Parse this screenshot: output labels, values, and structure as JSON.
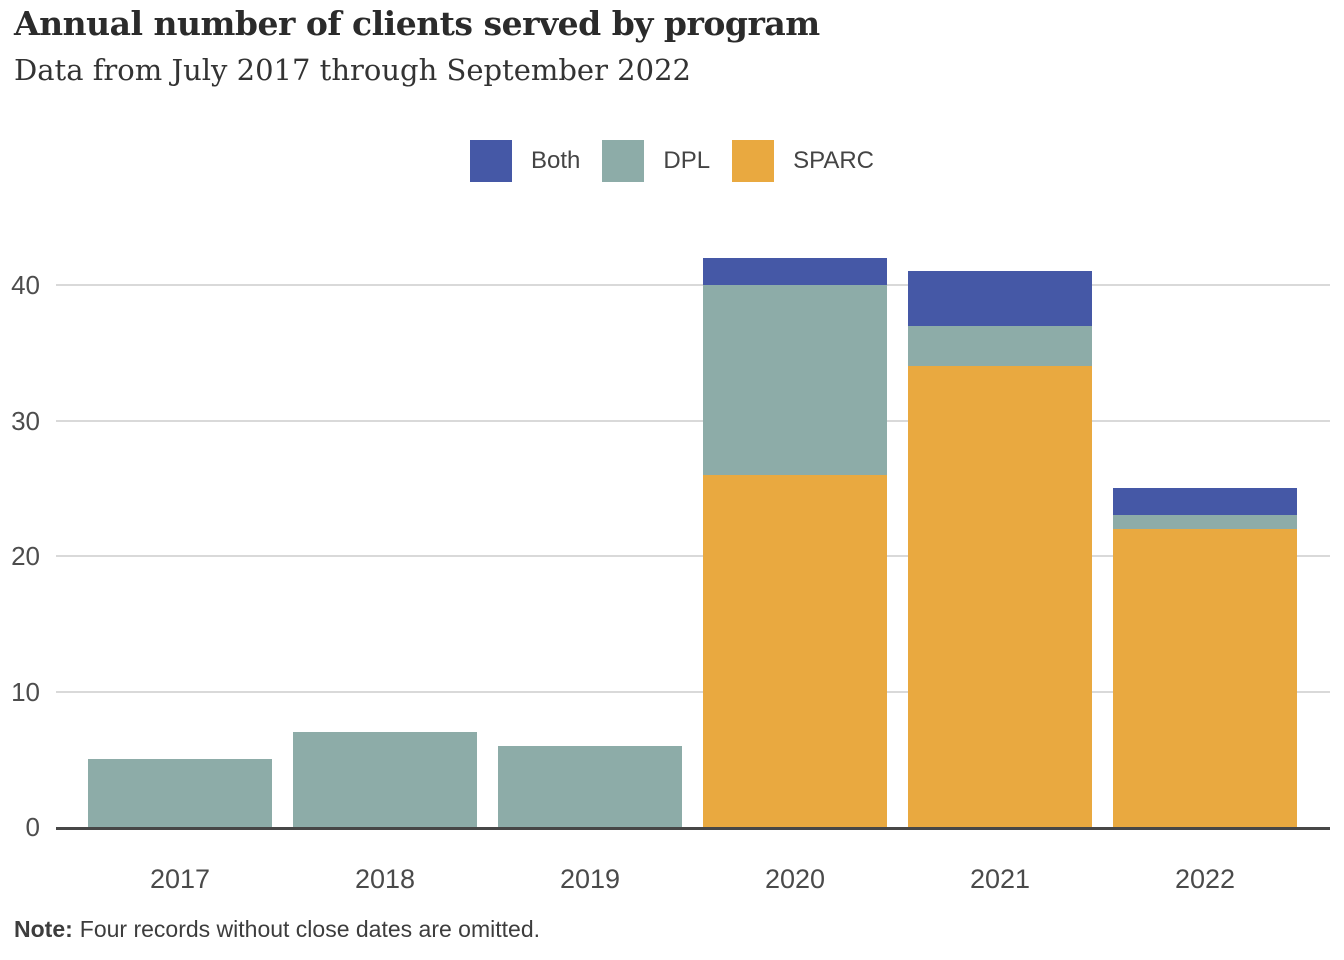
{
  "header": {
    "title": "Annual number of clients served by program",
    "subtitle": "Data from July 2017 through September 2022"
  },
  "legend": [
    {
      "label": "Both",
      "color": "#4558A6"
    },
    {
      "label": "DPL",
      "color": "#8DACA8"
    },
    {
      "label": "SPARC",
      "color": "#E9A940"
    }
  ],
  "note": {
    "label": "Note:",
    "text": "Four records without close dates are omitted."
  },
  "chart_data": {
    "type": "bar",
    "stacked": true,
    "title": "Annual number of clients served by program",
    "subtitle": "Data from July 2017 through September 2022",
    "categories": [
      "2017",
      "2018",
      "2019",
      "2020",
      "2021",
      "2022"
    ],
    "series": [
      {
        "name": "SPARC",
        "color": "#E9A940",
        "values": [
          0,
          0,
          0,
          26,
          34,
          22
        ]
      },
      {
        "name": "DPL",
        "color": "#8DACA8",
        "values": [
          5,
          7,
          6,
          14,
          3,
          1
        ]
      },
      {
        "name": "Both",
        "color": "#4558A6",
        "values": [
          0,
          0,
          0,
          2,
          4,
          2
        ]
      }
    ],
    "totals": [
      5,
      7,
      6,
      42,
      41,
      25
    ],
    "xlabel": "",
    "ylabel": "",
    "yticks": [
      0,
      10,
      20,
      30,
      40
    ],
    "ylim": [
      0,
      42
    ],
    "grid": "horizontal",
    "legend_position": "top-center",
    "colors": {
      "axis_line": "#474747",
      "gridline": "#d9d9d9",
      "tick_text": "#4d4d4d"
    }
  }
}
